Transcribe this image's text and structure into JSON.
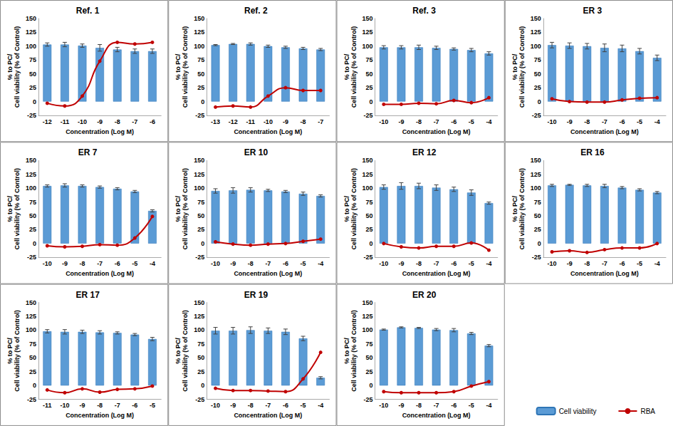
{
  "chart_data": [
    {
      "type": "bar",
      "title": "Ref. 1",
      "xlabel": "Concentration (Log M)",
      "ylabel": "% to PC/\nCell viability (% of Control)",
      "categories": [
        -12,
        -11,
        -10,
        -9,
        -8,
        -7,
        -6
      ],
      "ylim": [
        -25,
        150
      ],
      "yticks": [
        -25,
        0,
        25,
        50,
        75,
        100,
        125,
        150
      ],
      "grid": false,
      "series": [
        {
          "name": "Cell viability",
          "type": "bar",
          "color": "#5B9BD5",
          "values": [
            103,
            103,
            101,
            97,
            94,
            91,
            91
          ],
          "errors": [
            3,
            4,
            3,
            6,
            4,
            4,
            4
          ]
        },
        {
          "name": "RBA",
          "type": "line",
          "color": "#C00000",
          "marker": "circle",
          "line_style": "smooth",
          "values": [
            -3,
            -8,
            10,
            73,
            107,
            104,
            107
          ]
        }
      ]
    },
    {
      "type": "bar",
      "title": "Ref. 2",
      "xlabel": "Concentration (Log M)",
      "ylabel": "% to PC/\nCell viability (% of Control)",
      "categories": [
        -13,
        -12,
        -11,
        -10,
        -9,
        -8,
        -7
      ],
      "ylim": [
        -25,
        150
      ],
      "yticks": [
        -25,
        0,
        25,
        50,
        75,
        100,
        125,
        150
      ],
      "grid": false,
      "series": [
        {
          "name": "Cell viability",
          "type": "bar",
          "color": "#5B9BD5",
          "values": [
            102,
            104,
            104,
            100,
            98,
            96,
            94
          ],
          "errors": [
            1,
            1,
            2,
            2,
            2,
            2,
            2
          ]
        },
        {
          "name": "RBA",
          "type": "line",
          "color": "#C00000",
          "marker": "circle",
          "line_style": "smooth",
          "values": [
            -10,
            -8,
            -10,
            10,
            25,
            20,
            20
          ]
        }
      ]
    },
    {
      "type": "bar",
      "title": "Ref. 3",
      "xlabel": "Concentration (Log M)",
      "ylabel": "% to PC/\nCell viability (% of Control)",
      "categories": [
        -10,
        -9,
        -8,
        -7,
        -6,
        -5,
        -4
      ],
      "ylim": [
        -25,
        150
      ],
      "yticks": [
        -25,
        0,
        25,
        50,
        75,
        100,
        125,
        150
      ],
      "grid": false,
      "series": [
        {
          "name": "Cell viability",
          "type": "bar",
          "color": "#5B9BD5",
          "values": [
            98,
            98,
            98,
            97,
            95,
            93,
            87
          ],
          "errors": [
            3,
            3,
            4,
            3,
            2,
            3,
            3
          ]
        },
        {
          "name": "RBA",
          "type": "line",
          "color": "#C00000",
          "marker": "circle",
          "line_style": "smooth",
          "values": [
            -5,
            -5,
            -3,
            -4,
            2,
            -2,
            7
          ]
        }
      ]
    },
    {
      "type": "bar",
      "title": "ER 3",
      "xlabel": "Concentration (Log M)",
      "ylabel": "% to PC/\nCell viability (% of Control)",
      "categories": [
        -10,
        -9,
        -8,
        -7,
        -6,
        -5,
        -4
      ],
      "ylim": [
        -25,
        150
      ],
      "yticks": [
        -25,
        0,
        25,
        50,
        75,
        100,
        125,
        150
      ],
      "grid": false,
      "series": [
        {
          "name": "Cell viability",
          "type": "bar",
          "color": "#5B9BD5",
          "values": [
            102,
            101,
            100,
            97,
            96,
            91,
            79
          ],
          "errors": [
            5,
            5,
            5,
            7,
            6,
            5,
            5
          ]
        },
        {
          "name": "RBA",
          "type": "line",
          "color": "#C00000",
          "marker": "circle",
          "line_style": "smooth",
          "values": [
            5,
            0,
            -1,
            -1,
            3,
            6,
            7
          ]
        }
      ]
    },
    {
      "type": "bar",
      "title": "ER 7",
      "xlabel": "Concentration (Log M)",
      "ylabel": "% to PC/\nCell viability (% of Control)",
      "categories": [
        -10,
        -9,
        -8,
        -7,
        -6,
        -5,
        -4
      ],
      "ylim": [
        -25,
        150
      ],
      "yticks": [
        -25,
        0,
        25,
        50,
        75,
        100,
        125,
        150
      ],
      "grid": false,
      "series": [
        {
          "name": "Cell viability",
          "type": "bar",
          "color": "#5B9BD5",
          "values": [
            104,
            105,
            104,
            102,
            99,
            94,
            59
          ],
          "errors": [
            2,
            3,
            2,
            2,
            2,
            2,
            2
          ]
        },
        {
          "name": "RBA",
          "type": "line",
          "color": "#C00000",
          "marker": "circle",
          "line_style": "smooth",
          "values": [
            -4,
            -6,
            -5,
            -2,
            -3,
            10,
            49
          ]
        }
      ]
    },
    {
      "type": "bar",
      "title": "ER 10",
      "xlabel": "Concentration (Log M)",
      "ylabel": "% to PC/\nCell viability (% of Control)",
      "categories": [
        -10,
        -9,
        -8,
        -7,
        -6,
        -5,
        -4
      ],
      "ylim": [
        -25,
        150
      ],
      "yticks": [
        -25,
        0,
        25,
        50,
        75,
        100,
        125,
        150
      ],
      "grid": false,
      "series": [
        {
          "name": "Cell viability",
          "type": "bar",
          "color": "#5B9BD5",
          "values": [
            95,
            96,
            97,
            96,
            94,
            90,
            86
          ],
          "errors": [
            4,
            5,
            4,
            2,
            2,
            3,
            2
          ]
        },
        {
          "name": "RBA",
          "type": "line",
          "color": "#C00000",
          "marker": "circle",
          "line_style": "smooth",
          "values": [
            3,
            -1,
            -3,
            -1,
            0,
            4,
            8
          ]
        }
      ]
    },
    {
      "type": "bar",
      "title": "ER 12",
      "xlabel": "Concentration (Log M)",
      "ylabel": "% to PC/\nCell viability (% of Control)",
      "categories": [
        -10,
        -9,
        -8,
        -7,
        -6,
        -5,
        -4
      ],
      "ylim": [
        -25,
        150
      ],
      "yticks": [
        -25,
        0,
        25,
        50,
        75,
        100,
        125,
        150
      ],
      "grid": false,
      "series": [
        {
          "name": "Cell viability",
          "type": "bar",
          "color": "#5B9BD5",
          "values": [
            102,
            104,
            104,
            101,
            98,
            92,
            73
          ],
          "errors": [
            4,
            6,
            5,
            5,
            4,
            5,
            2
          ]
        },
        {
          "name": "RBA",
          "type": "line",
          "color": "#C00000",
          "marker": "circle",
          "line_style": "smooth",
          "values": [
            0,
            -6,
            -8,
            -5,
            -5,
            1,
            -12
          ]
        }
      ]
    },
    {
      "type": "bar",
      "title": "ER 16",
      "xlabel": "Concentration (Log M)",
      "ylabel": "% to PC/\nCell viability (% of Control)",
      "categories": [
        -10,
        -9,
        -8,
        -7,
        -6,
        -5,
        -4
      ],
      "ylim": [
        -25,
        150
      ],
      "yticks": [
        -25,
        0,
        25,
        50,
        75,
        100,
        125,
        150
      ],
      "grid": false,
      "series": [
        {
          "name": "Cell viability",
          "type": "bar",
          "color": "#5B9BD5",
          "values": [
            105,
            106,
            105,
            104,
            101,
            97,
            92
          ],
          "errors": [
            2,
            1,
            2,
            3,
            2,
            2,
            2
          ]
        },
        {
          "name": "RBA",
          "type": "line",
          "color": "#C00000",
          "marker": "circle",
          "line_style": "smooth",
          "values": [
            -15,
            -13,
            -16,
            -11,
            -8,
            -8,
            0
          ]
        }
      ]
    },
    {
      "type": "bar",
      "title": "ER 17",
      "xlabel": "Concentration (Log M)",
      "ylabel": "% to PC/\nCell viability (% of Control)",
      "categories": [
        -11,
        -10,
        -9,
        -8,
        -7,
        -6,
        -5
      ],
      "ylim": [
        -25,
        150
      ],
      "yticks": [
        -25,
        0,
        25,
        50,
        75,
        100,
        125,
        150
      ],
      "grid": false,
      "series": [
        {
          "name": "Cell viability",
          "type": "bar",
          "color": "#5B9BD5",
          "values": [
            98,
            97,
            97,
            96,
            95,
            92,
            84
          ],
          "errors": [
            3,
            4,
            3,
            3,
            2,
            2,
            3
          ]
        },
        {
          "name": "RBA",
          "type": "line",
          "color": "#C00000",
          "marker": "circle",
          "line_style": "smooth",
          "values": [
            -8,
            -13,
            -6,
            -12,
            -7,
            -6,
            -1
          ]
        }
      ]
    },
    {
      "type": "bar",
      "title": "ER 19",
      "xlabel": "Concentration (Log M)",
      "ylabel": "% to PC/\nCell viability (% of Control)",
      "categories": [
        -10,
        -9,
        -8,
        -7,
        -6,
        -5,
        -4
      ],
      "ylim": [
        -25,
        150
      ],
      "yticks": [
        -25,
        0,
        25,
        50,
        75,
        100,
        125,
        150
      ],
      "grid": false,
      "series": [
        {
          "name": "Cell viability",
          "type": "bar",
          "color": "#5B9BD5",
          "values": [
            99,
            99,
            100,
            99,
            97,
            85,
            14
          ],
          "errors": [
            6,
            6,
            6,
            5,
            5,
            4,
            2
          ]
        },
        {
          "name": "RBA",
          "type": "line",
          "color": "#C00000",
          "marker": "circle",
          "line_style": "smooth",
          "values": [
            -5,
            -9,
            -9,
            -10,
            -11,
            12,
            60
          ]
        }
      ]
    },
    {
      "type": "bar",
      "title": "ER 20",
      "xlabel": "Concentration (Log M)",
      "ylabel": "% to PC/\nCell viability (% of Control)",
      "categories": [
        -10,
        -9,
        -8,
        -7,
        -6,
        -5,
        -4
      ],
      "ylim": [
        -25,
        150
      ],
      "yticks": [
        -25,
        0,
        25,
        50,
        75,
        100,
        125,
        150
      ],
      "grid": false,
      "legend": "bottom-right",
      "series": [
        {
          "name": "Cell viability",
          "type": "bar",
          "color": "#5B9BD5",
          "values": [
            101,
            105,
            104,
            101,
            100,
            94,
            72
          ],
          "errors": [
            1,
            1,
            1,
            2,
            3,
            2,
            2
          ]
        },
        {
          "name": "RBA",
          "type": "line",
          "color": "#C00000",
          "marker": "circle",
          "line_style": "smooth",
          "values": [
            -11,
            -13,
            -13,
            -13,
            -11,
            -1,
            7
          ]
        }
      ]
    }
  ]
}
